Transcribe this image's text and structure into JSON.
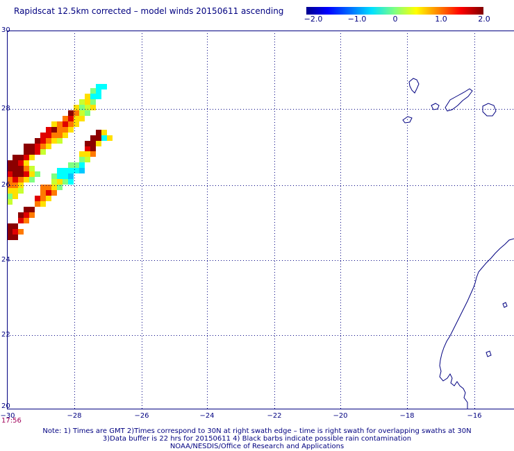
{
  "title": "Rapidscat 12.5km corrected – model winds 20150611 ascending",
  "colorbar": {
    "labels": [
      "−2.0",
      "−1.0",
      "0",
      "1.0",
      "2.0"
    ],
    "values": [
      -2.0,
      -1.0,
      0,
      1.0,
      2.0
    ]
  },
  "axes": {
    "lat_labels": [
      "30",
      "28",
      "26",
      "24",
      "22",
      "20"
    ],
    "lon_labels": [
      "−30",
      "−28",
      "−26",
      "−24",
      "−22",
      "−20",
      "−18",
      "−16"
    ],
    "lat_range": [
      20,
      30
    ],
    "lon_range": [
      -30,
      -15.3
    ],
    "grid": "dotted"
  },
  "time_label": "17:56",
  "notes": [
    "Note: 1) Times are GMT 2)Times correspond to 30N at right swath edge – time is right swath for overlapping swaths at 30N",
    "3)Data buffer is 22 hrs for 20150611 4) Black barbs indicate possible rain contamination",
    "NOAA/NESDIS/Office of Research and Applications"
  ],
  "colors": {
    "text": "#000080",
    "time_label": "#a0005a",
    "coastline": "#000080",
    "grid": "#000080"
  }
}
